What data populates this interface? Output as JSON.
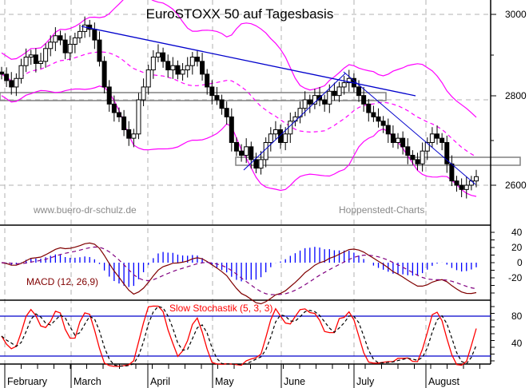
{
  "chart_data": {
    "type": "candlestick",
    "title": "EuroSTOXX 50 auf Tagesbasis",
    "watermarks": [
      "www.buero-dr-schulz.de",
      "Hoppenstedt-Charts"
    ],
    "x_axis": {
      "months": [
        "February",
        "March",
        "April",
        "May",
        "June",
        "July",
        "August"
      ],
      "month_x": [
        6,
        89,
        185,
        266,
        352,
        443,
        533
      ]
    },
    "price_panel": {
      "ylim": [
        2540,
        3030
      ],
      "ticks": [
        3000,
        2800,
        2600
      ],
      "indicators": [
        "Bollinger Bands (upper, middle, lower)",
        "Trend lines",
        "Resistance/Support boxes"
      ],
      "support_boxes": [
        {
          "label": "box-2800",
          "low": 2785,
          "high": 2805
        },
        {
          "label": "box-2650",
          "low": 2645,
          "high": 2665
        }
      ],
      "closes": [
        2860,
        2845,
        2830,
        2850,
        2880,
        2900,
        2905,
        2885,
        2890,
        2920,
        2935,
        2950,
        2940,
        2910,
        2930,
        2945,
        2960,
        2975,
        2965,
        2940,
        2890,
        2830,
        2790,
        2770,
        2760,
        2730,
        2710,
        2720,
        2800,
        2830,
        2870,
        2900,
        2910,
        2890,
        2870,
        2880,
        2860,
        2870,
        2880,
        2900,
        2890,
        2860,
        2830,
        2810,
        2800,
        2780,
        2760,
        2700,
        2680,
        2670,
        2690,
        2660,
        2640,
        2660,
        2700,
        2720,
        2730,
        2700,
        2720,
        2750,
        2760,
        2780,
        2800,
        2790,
        2810,
        2800,
        2790,
        2820,
        2810,
        2830,
        2840,
        2850,
        2830,
        2810,
        2790,
        2770,
        2760,
        2750,
        2740,
        2720,
        2700,
        2710,
        2690,
        2670,
        2660,
        2650,
        2680,
        2700,
        2720,
        2710,
        2700,
        2650,
        2610,
        2600,
        2590,
        2600,
        2610,
        2620
      ]
    },
    "macd_panel": {
      "label": "MACD (12, 26,9)",
      "ticks": [
        40,
        20,
        0,
        -20
      ],
      "ylim": [
        -45,
        50
      ]
    },
    "stochastic_panel": {
      "label": "Slow Stochastik (5, 3, 3)",
      "ticks": [
        80,
        40
      ],
      "reference_lines": [
        80,
        20
      ],
      "ylim": [
        0,
        100
      ]
    },
    "colors": {
      "candle": "#000000",
      "bollinger": "#ff00ff",
      "trendline": "#0000cc",
      "macd_line": "#800000",
      "macd_signal": "#800080",
      "macd_hist": "#0000ff",
      "stoch_k": "#ff0000",
      "stoch_d": "#000000",
      "stoch_ref": "#0000cc",
      "grid": "#b0b0b0",
      "box": "#808080"
    }
  },
  "labels": {
    "title": "EuroSTOXX 50 auf Tagesbasis",
    "watermark_left": "www.buero-dr-schulz.de",
    "watermark_right": "Hoppenstedt-Charts",
    "macd": "MACD (12, 26,9)",
    "stoch": "Slow Stochastik (5, 3, 3)",
    "y_price": [
      "3000",
      "2800",
      "2600"
    ],
    "y_macd": [
      "40",
      "20",
      "0",
      "-20"
    ],
    "y_stoch": [
      "80",
      "40"
    ],
    "months": [
      "February",
      "March",
      "April",
      "May",
      "June",
      "July",
      "August"
    ]
  }
}
